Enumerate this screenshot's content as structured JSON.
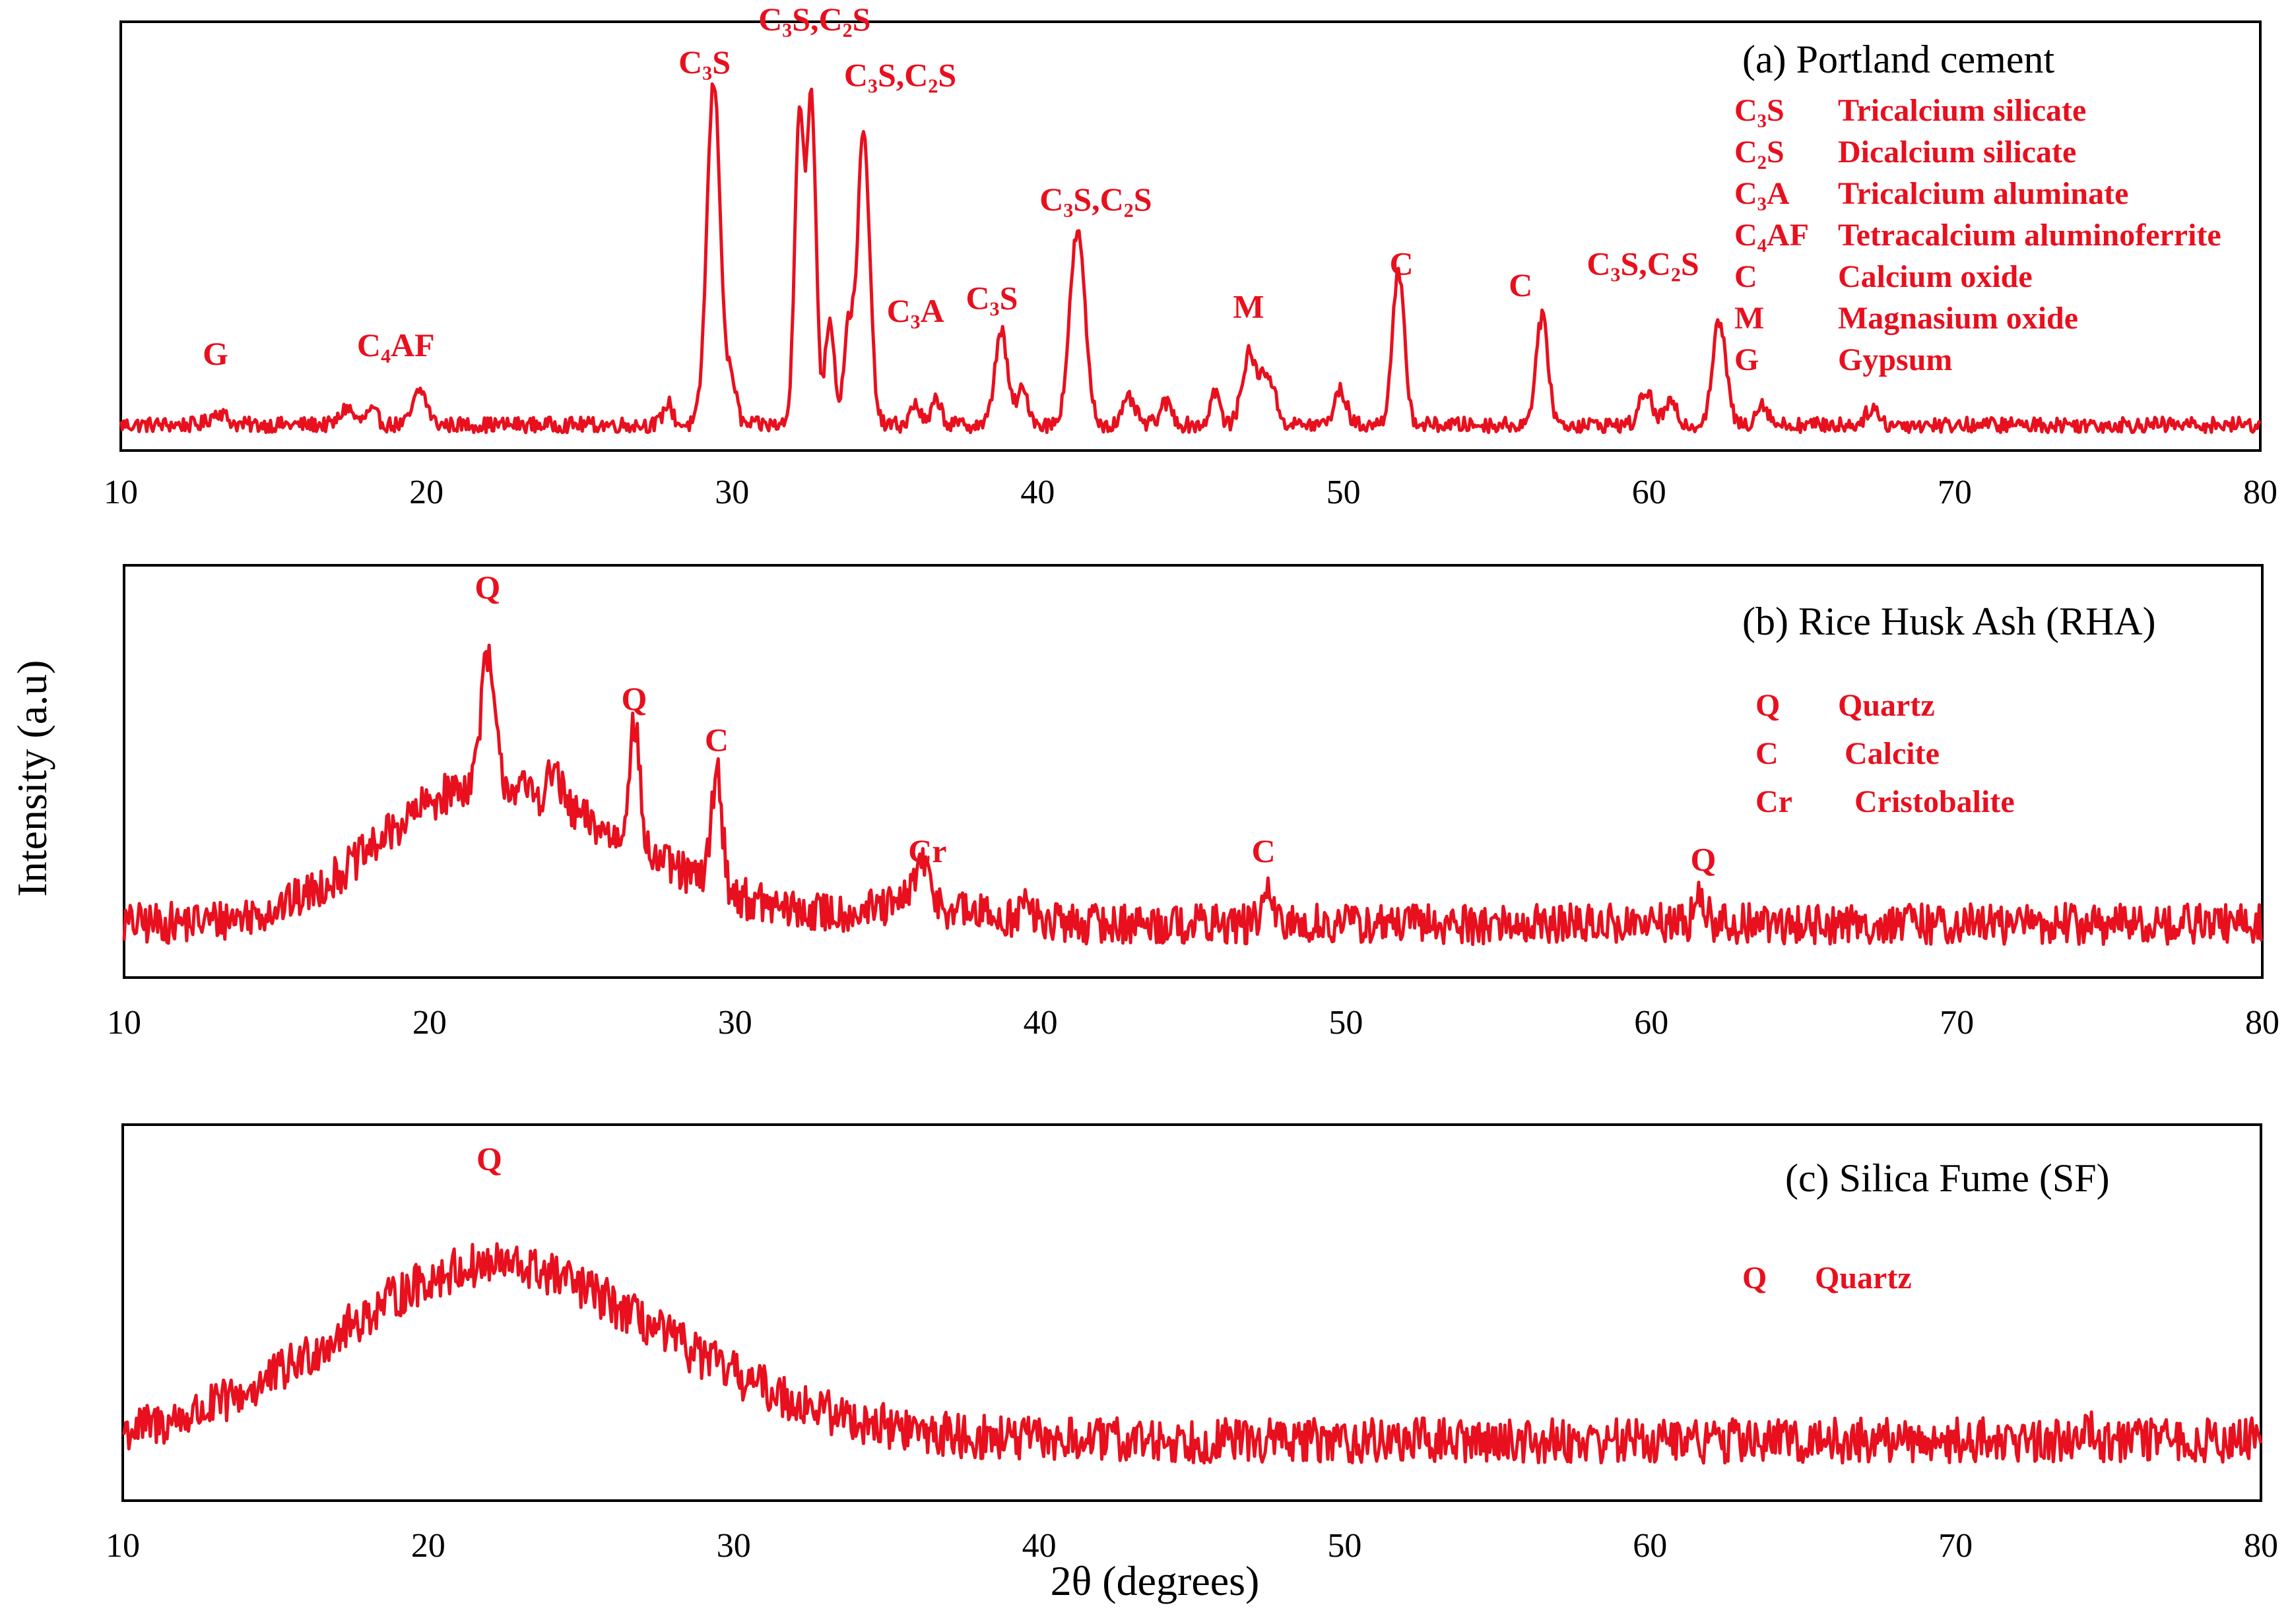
{
  "chart_data": {
    "type": "line",
    "y_axis_title": "Intensity (a.u)",
    "x_axis_title": "2θ (degrees)",
    "xlim": [
      10,
      80
    ],
    "x_ticks": [
      "10",
      "20",
      "30",
      "40",
      "50",
      "60",
      "70",
      "80"
    ],
    "trace_color": "#e8101e",
    "panels": [
      {
        "id": "a",
        "title": "(a) Portland cement",
        "baseline": 0.06,
        "noise": 0.018,
        "broad_humps": [],
        "peaks": [
          {
            "x": 13.2,
            "h": 0.03,
            "w": 0.25
          },
          {
            "x": 17.4,
            "h": 0.04,
            "w": 0.2
          },
          {
            "x": 18.2,
            "h": 0.03,
            "w": 0.2
          },
          {
            "x": 19.8,
            "h": 0.08,
            "w": 0.22
          },
          {
            "x": 27.9,
            "h": 0.05,
            "w": 0.15
          },
          {
            "x": 29.4,
            "h": 0.8,
            "w": 0.22
          },
          {
            "x": 30.0,
            "h": 0.1,
            "w": 0.15
          },
          {
            "x": 32.2,
            "h": 0.73,
            "w": 0.15
          },
          {
            "x": 32.6,
            "h": 0.75,
            "w": 0.15
          },
          {
            "x": 33.2,
            "h": 0.25,
            "w": 0.15
          },
          {
            "x": 33.8,
            "h": 0.22,
            "w": 0.15
          },
          {
            "x": 34.3,
            "h": 0.68,
            "w": 0.2
          },
          {
            "x": 36.0,
            "h": 0.05,
            "w": 0.15
          },
          {
            "x": 36.7,
            "h": 0.06,
            "w": 0.15
          },
          {
            "x": 38.8,
            "h": 0.22,
            "w": 0.2
          },
          {
            "x": 39.5,
            "h": 0.08,
            "w": 0.2
          },
          {
            "x": 41.3,
            "h": 0.45,
            "w": 0.25
          },
          {
            "x": 43.0,
            "h": 0.06,
            "w": 0.2
          },
          {
            "x": 44.2,
            "h": 0.05,
            "w": 0.2
          },
          {
            "x": 45.8,
            "h": 0.08,
            "w": 0.15
          },
          {
            "x": 46.9,
            "h": 0.16,
            "w": 0.22
          },
          {
            "x": 47.5,
            "h": 0.12,
            "w": 0.25
          },
          {
            "x": 49.9,
            "h": 0.08,
            "w": 0.2
          },
          {
            "x": 51.8,
            "h": 0.35,
            "w": 0.2
          },
          {
            "x": 56.5,
            "h": 0.25,
            "w": 0.2
          },
          {
            "x": 59.9,
            "h": 0.08,
            "w": 0.2
          },
          {
            "x": 60.7,
            "h": 0.05,
            "w": 0.2
          },
          {
            "x": 62.3,
            "h": 0.24,
            "w": 0.22
          },
          {
            "x": 63.7,
            "h": 0.05,
            "w": 0.2
          },
          {
            "x": 67.3,
            "h": 0.04,
            "w": 0.2
          }
        ],
        "peak_labels": [
          {
            "text": "G",
            "x": 13.1,
            "y": 0.2
          },
          {
            "text": "C₄AF",
            "x": 19.0,
            "y": 0.22
          },
          {
            "text": "C₃S",
            "x": 29.1,
            "y": 0.88
          },
          {
            "text": "C₃S,C₂S",
            "x": 32.7,
            "y": 0.98
          },
          {
            "text": "C₃S,C₂S",
            "x": 35.5,
            "y": 0.85
          },
          {
            "text": "C₃A",
            "x": 36.0,
            "y": 0.3
          },
          {
            "text": "C₃S",
            "x": 38.5,
            "y": 0.33
          },
          {
            "text": "C₃S,C₂S",
            "x": 41.9,
            "y": 0.56
          },
          {
            "text": "M",
            "x": 46.9,
            "y": 0.31
          },
          {
            "text": "C",
            "x": 51.9,
            "y": 0.41
          },
          {
            "text": "C",
            "x": 55.8,
            "y": 0.36
          },
          {
            "text": "C₃S,C₂S",
            "x": 59.8,
            "y": 0.41
          }
        ],
        "legend": [
          {
            "symbol": "C₃S",
            "name": "Tricalcium silicate"
          },
          {
            "symbol": "C₂S",
            "name": "Dicalcium silicate"
          },
          {
            "symbol": "C₃A",
            "name": "Tricalcium aluminate"
          },
          {
            "symbol": "C₄AF",
            "name": "Tetracalcium aluminoferrite"
          },
          {
            "symbol": "C",
            "name": "Calcium oxide"
          },
          {
            "symbol": "M",
            "name": "Magnasium oxide"
          },
          {
            "symbol": "G",
            "name": "Gypsum"
          }
        ]
      },
      {
        "id": "b",
        "title": "(b) Rice Husk Ash (RHA)",
        "baseline": 0.13,
        "noise": 0.05,
        "broad_humps": [
          {
            "x": 21.5,
            "h": 0.32,
            "w": 3.2
          },
          {
            "x": 27.0,
            "h": 0.1,
            "w": 3.0
          },
          {
            "x": 36.0,
            "h": 0.04,
            "w": 2.0
          }
        ],
        "peaks": [
          {
            "x": 21.9,
            "h": 0.3,
            "w": 0.22
          },
          {
            "x": 24.1,
            "h": 0.08,
            "w": 0.2
          },
          {
            "x": 26.7,
            "h": 0.3,
            "w": 0.18
          },
          {
            "x": 29.4,
            "h": 0.28,
            "w": 0.18
          },
          {
            "x": 36.1,
            "h": 0.1,
            "w": 0.3
          },
          {
            "x": 39.5,
            "h": 0.04,
            "w": 0.2
          },
          {
            "x": 47.4,
            "h": 0.08,
            "w": 0.15
          },
          {
            "x": 61.6,
            "h": 0.06,
            "w": 0.2
          }
        ],
        "peak_labels": [
          {
            "text": "Q",
            "x": 21.9,
            "y": 0.92
          },
          {
            "text": "Q",
            "x": 26.7,
            "y": 0.65
          },
          {
            "text": "C",
            "x": 29.4,
            "y": 0.55
          },
          {
            "text": "Cr",
            "x": 36.3,
            "y": 0.28
          },
          {
            "text": "C",
            "x": 47.3,
            "y": 0.28
          },
          {
            "text": "Q",
            "x": 61.7,
            "y": 0.26
          }
        ],
        "legend": [
          {
            "symbol": "Q",
            "name": "Quartz"
          },
          {
            "symbol": "C",
            "name": "Calcite"
          },
          {
            "symbol": "Cr",
            "name": "Cristobalite"
          }
        ]
      },
      {
        "id": "c",
        "title": "(c) Silica Fume (SF)",
        "baseline": 0.16,
        "noise": 0.06,
        "broad_humps": [
          {
            "x": 22.0,
            "h": 0.46,
            "w": 5.0
          },
          {
            "x": 30.0,
            "h": 0.05,
            "w": 4.0
          }
        ],
        "peaks": [
          {
            "x": 74.3,
            "h": 0.05,
            "w": 0.2
          }
        ],
        "peak_labels": [
          {
            "text": "Q",
            "x": 22.0,
            "y": 0.88
          }
        ],
        "legend": [
          {
            "symbol": "Q",
            "name": "Quartz"
          }
        ]
      }
    ]
  }
}
